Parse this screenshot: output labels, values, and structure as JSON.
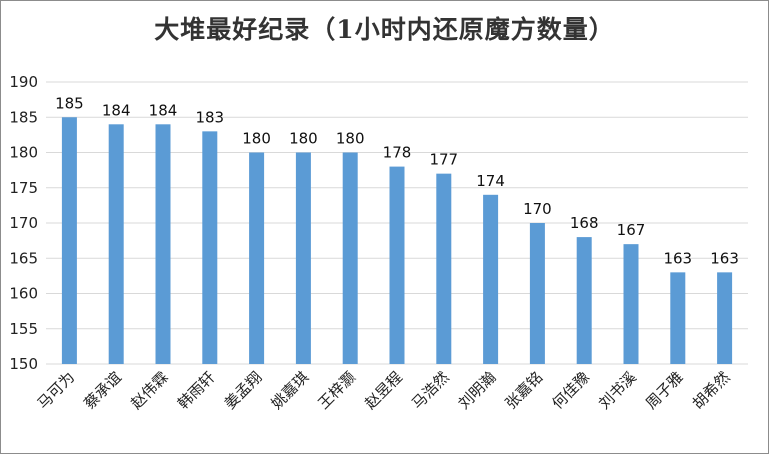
{
  "chart_data": {
    "type": "bar",
    "title": "大堆最好纪录（1小时内还原魔方数量）",
    "xlabel": "",
    "ylabel": "",
    "categories": [
      "马可为",
      "蔡承谊",
      "赵伟霖",
      "韩雨轩",
      "姜孟翔",
      "姚嘉琪",
      "王梓灏",
      "赵昱程",
      "马浩然",
      "刘明瀚",
      "张嘉铭",
      "何佳豫",
      "刘书溪",
      "周子雅",
      "胡希然"
    ],
    "values": [
      185,
      184,
      184,
      183,
      180,
      180,
      180,
      178,
      177,
      174,
      170,
      168,
      167,
      163,
      163
    ],
    "ylim": [
      150,
      190
    ],
    "yticks": [
      150,
      155,
      160,
      165,
      170,
      175,
      180,
      185,
      190
    ],
    "grid": true,
    "legend": "none",
    "bar_color": "#5b9bd5",
    "grid_color": "#d9d9d9"
  }
}
